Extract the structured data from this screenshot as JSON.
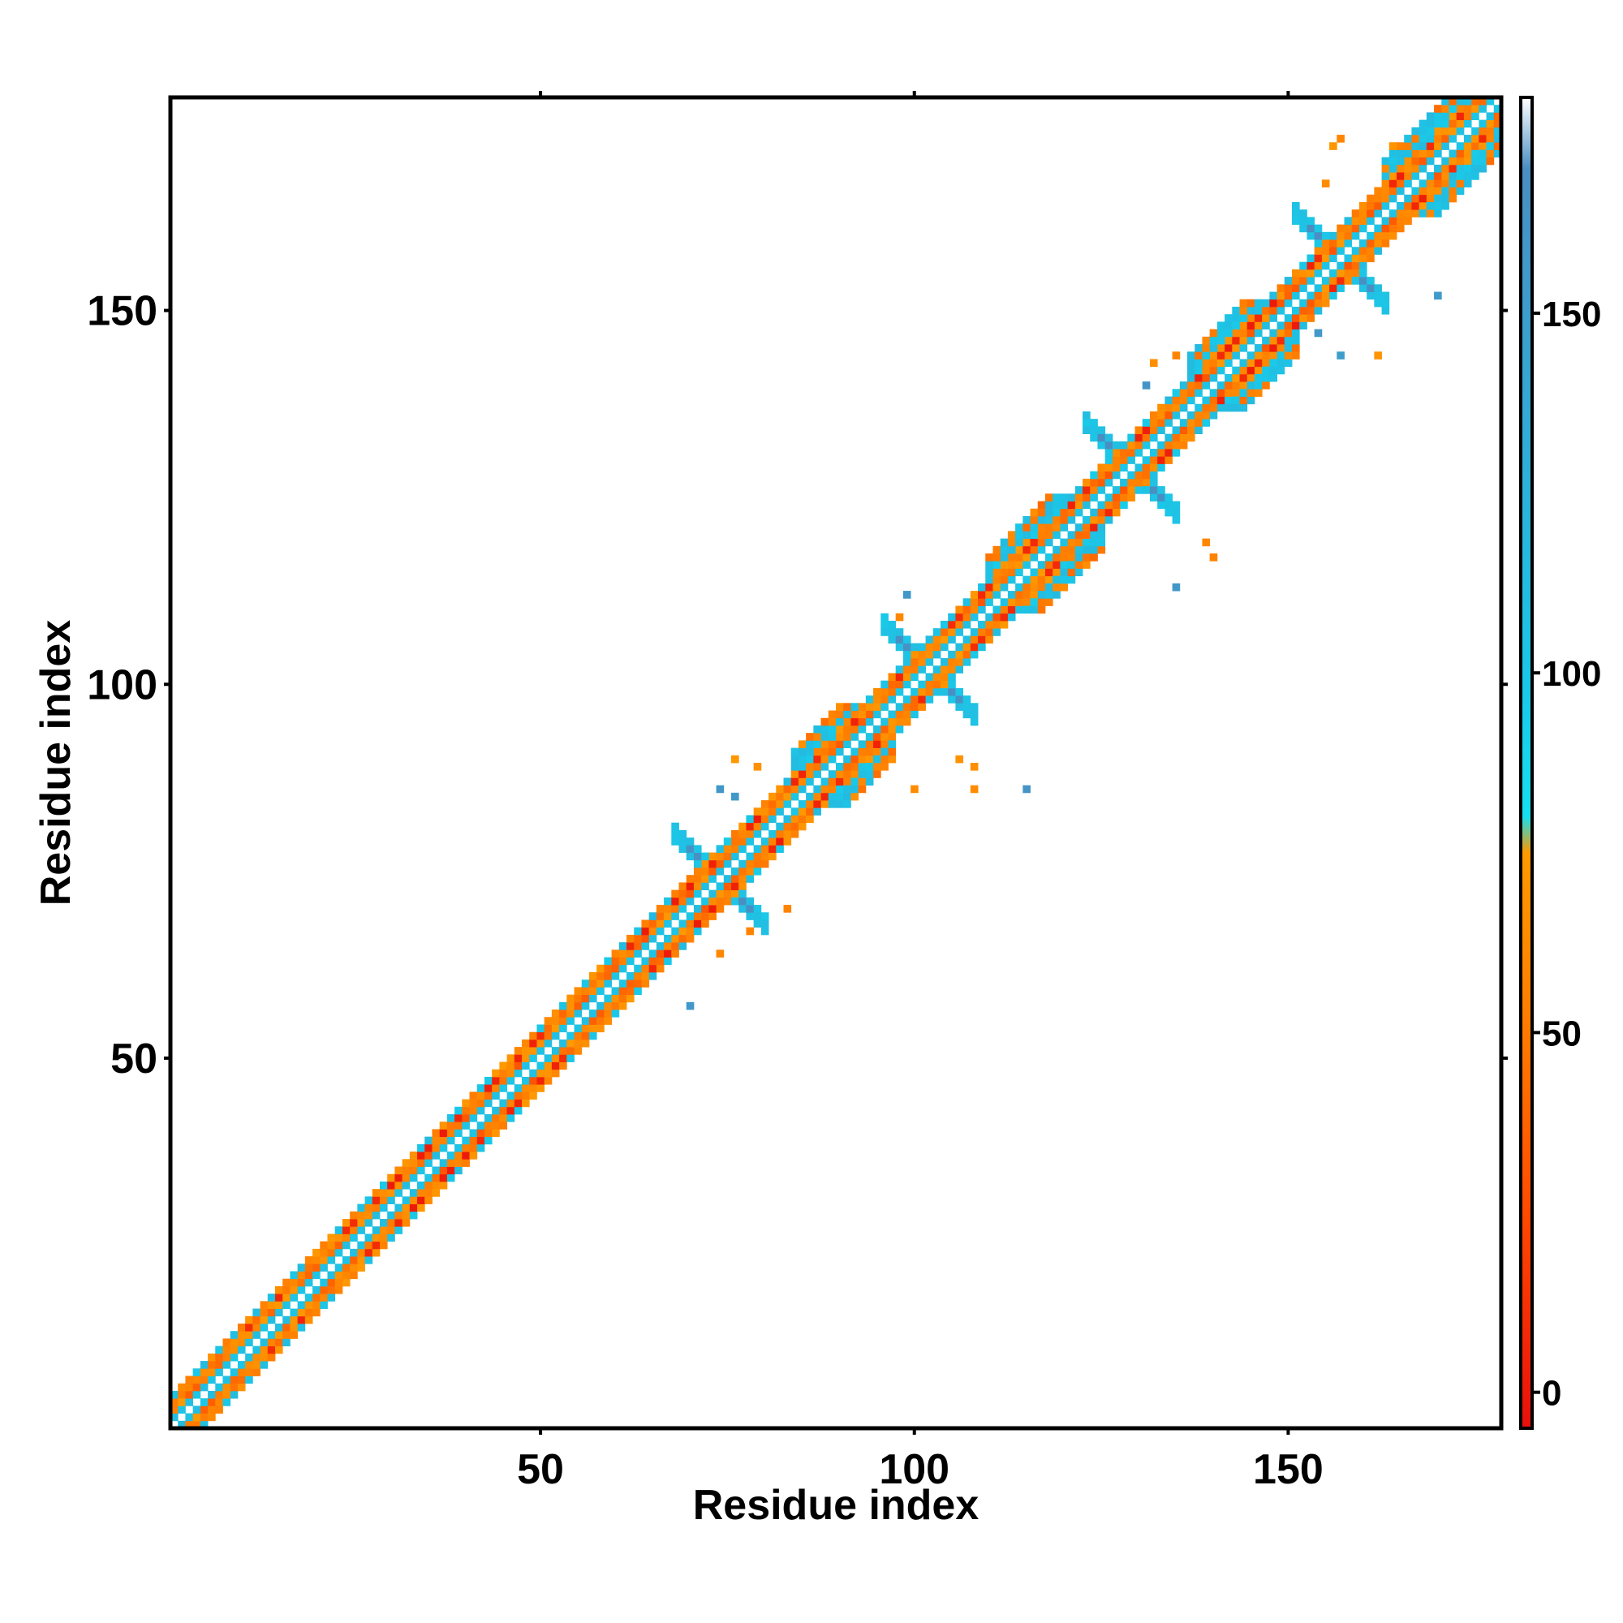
{
  "chart_data": {
    "type": "heatmap",
    "title": "",
    "xlabel": "Residue index",
    "ylabel": "Residue index",
    "xlim": [
      1,
      178
    ],
    "ylim": [
      1,
      178
    ],
    "x_ticks": [
      50,
      100,
      150
    ],
    "y_ticks": [
      50,
      100,
      150
    ],
    "colorbar": {
      "range": [
        -5,
        180
      ],
      "ticks": [
        0,
        50,
        100,
        150
      ],
      "stops": [
        {
          "value": -5,
          "color": "#e8100c"
        },
        {
          "value": 25,
          "color": "#ff4a00"
        },
        {
          "value": 50,
          "color": "#ff7a00"
        },
        {
          "value": 75,
          "color": "#ff9a00"
        },
        {
          "value": 80,
          "color": "#16e0f0"
        },
        {
          "value": 98,
          "color": "#1ac8e8"
        },
        {
          "value": 170,
          "color": "#4a8ec2"
        },
        {
          "value": 180,
          "color": "#ffffff"
        }
      ]
    },
    "grid": false,
    "diagonal_band": {
      "from": 1,
      "to": 178,
      "half_width_residues": 4,
      "description": "contacts near the diagonal (|i-j| <= 4)"
    },
    "cluster_centers": [
      {
        "x": 74,
        "y": 74,
        "value": 165
      },
      {
        "x": 102,
        "y": 102,
        "value": 165
      },
      {
        "x": 129,
        "y": 129,
        "value": 165
      },
      {
        "x": 157,
        "y": 157,
        "value": 165
      }
    ],
    "helical_segments": [
      {
        "from": 84,
        "to": 94
      },
      {
        "from": 110,
        "to": 122
      },
      {
        "from": 137,
        "to": 148
      },
      {
        "from": 163,
        "to": 176
      }
    ]
  },
  "colors": {
    "red": "#e8100c",
    "orange": "#ff7a00",
    "amber": "#ff9a00",
    "cyan": "#16e0f0",
    "steel_blue": "#4a8ec2",
    "axis": "#000000",
    "background": "#ffffff"
  }
}
